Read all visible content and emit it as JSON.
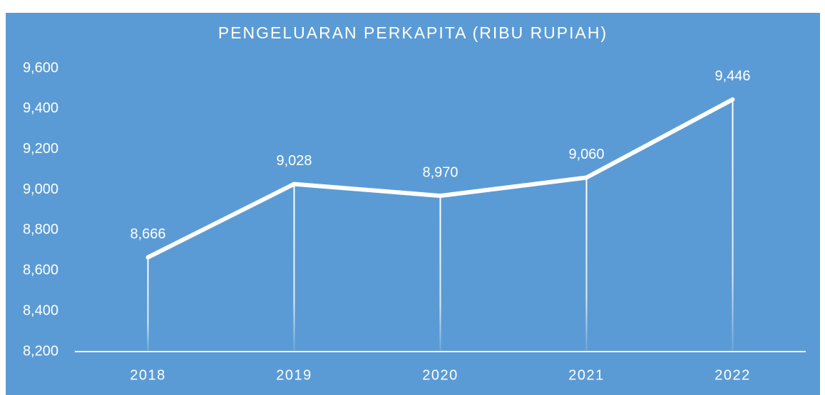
{
  "chart_data": {
    "type": "line",
    "title": "PENGELUARAN PERKAPITA (RIBU RUPIAH)",
    "categories": [
      "2018",
      "2019",
      "2020",
      "2021",
      "2022"
    ],
    "series": [
      {
        "name": "Pengeluaran Perkapita",
        "color": "#ffffff",
        "values": [
          8666,
          9028,
          8970,
          9060,
          9446
        ],
        "value_labels": [
          "8,666",
          "9,028",
          "8,970",
          "9,060",
          "9,446"
        ]
      }
    ],
    "ylim": [
      8200,
      9600
    ],
    "yticks": [
      {
        "value": 8200,
        "label": "8,200"
      },
      {
        "value": 8400,
        "label": "8,400"
      },
      {
        "value": 8600,
        "label": "8,600"
      },
      {
        "value": 8800,
        "label": "8,800"
      },
      {
        "value": 9000,
        "label": "9,000"
      },
      {
        "value": 9200,
        "label": "9,200"
      },
      {
        "value": 9400,
        "label": "9,400"
      },
      {
        "value": 9600,
        "label": "9,600"
      }
    ],
    "background": "#5b9bd5",
    "grid": false
  }
}
